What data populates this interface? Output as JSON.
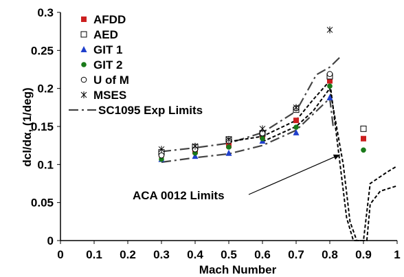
{
  "chart_data": {
    "type": "scatter",
    "xlabel": "Mach Number",
    "ylabel": "dcl/dα, (1/deg)",
    "xlim": [
      0,
      1
    ],
    "ylim": [
      0,
      0.3
    ],
    "x_ticks": [
      "0",
      "0.1",
      "0.2",
      "0.3",
      "0.4",
      "0.5",
      "0.6",
      "0.7",
      "0.8",
      "0.9",
      "1"
    ],
    "y_ticks": [
      "0",
      "0.05",
      "0.1",
      "0.15",
      "0.2",
      "0.25",
      "0.3"
    ],
    "grid": false,
    "legend_position": "top-left",
    "series": [
      {
        "name": "AFDD",
        "marker": "filled-square",
        "color": "#cc1f1f",
        "x": [
          0.3,
          0.4,
          0.5,
          0.6,
          0.7,
          0.8,
          0.9
        ],
        "y": [
          0.113,
          0.117,
          0.125,
          0.137,
          0.158,
          0.21,
          0.134
        ]
      },
      {
        "name": "AED",
        "marker": "open-square",
        "color": "#000000",
        "x": [
          0.3,
          0.4,
          0.5,
          0.6,
          0.7,
          0.8,
          0.9
        ],
        "y": [
          0.116,
          0.123,
          0.133,
          0.141,
          0.172,
          0.216,
          0.147
        ]
      },
      {
        "name": "GIT 1",
        "marker": "filled-triangle",
        "color": "#1f3fcc",
        "x": [
          0.3,
          0.4,
          0.5,
          0.6,
          0.7,
          0.8
        ],
        "y": [
          0.107,
          0.111,
          0.115,
          0.131,
          0.142,
          0.188
        ]
      },
      {
        "name": "GIT 2",
        "marker": "filled-circle",
        "color": "#1a7a1a",
        "x": [
          0.3,
          0.4,
          0.5,
          0.6,
          0.7,
          0.8,
          0.9
        ],
        "y": [
          0.107,
          0.115,
          0.123,
          0.134,
          0.149,
          0.203,
          0.119
        ]
      },
      {
        "name": "U of M",
        "marker": "open-circle",
        "color": "#000000",
        "x": [
          0.3,
          0.4,
          0.5,
          0.6,
          0.7,
          0.8
        ],
        "y": [
          0.112,
          0.12,
          0.131,
          0.141,
          0.174,
          0.219
        ]
      },
      {
        "name": "MSES",
        "marker": "asterisk",
        "color": "#000000",
        "x": [
          0.3,
          0.4,
          0.5,
          0.6,
          0.7,
          0.8
        ],
        "y": [
          0.12,
          0.124,
          0.133,
          0.147,
          0.175,
          0.277
        ]
      },
      {
        "name": "SC1095 Exp Limits",
        "line": "dash-dot",
        "color": "#444444",
        "segments": [
          {
            "x": [
              0.3,
              0.4,
              0.5,
              0.6,
              0.7,
              0.76,
              0.8,
              0.83
            ],
            "y": [
              0.117,
              0.122,
              0.128,
              0.142,
              0.17,
              0.218,
              0.228,
              0.241
            ]
          },
          {
            "x": [
              0.3,
              0.4,
              0.5,
              0.6,
              0.7,
              0.8,
              0.81
            ],
            "y": [
              0.103,
              0.109,
              0.114,
              0.125,
              0.145,
              0.187,
              0.15
            ]
          }
        ]
      },
      {
        "name": "ACA 0012 Limits",
        "line": "dashed",
        "color": "#000000",
        "segments": [
          {
            "x": [
              0.5,
              0.6,
              0.7,
              0.75,
              0.8,
              0.85,
              0.87,
              0.88,
              0.9,
              0.92,
              0.97,
              1.0
            ],
            "y": [
              0.13,
              0.137,
              0.158,
              0.185,
              0.21,
              0.03,
              0.0,
              0.0,
              0.0,
              0.075,
              0.09,
              0.098
            ]
          },
          {
            "x": [
              0.6,
              0.7,
              0.75,
              0.8,
              0.84,
              0.86,
              0.88,
              0.9,
              0.91,
              0.92,
              0.95,
              1.0
            ],
            "y": [
              0.13,
              0.15,
              0.17,
              0.2,
              0.1,
              0.025,
              0.0,
              0.0,
              0.0,
              0.048,
              0.065,
              0.072
            ]
          }
        ]
      }
    ],
    "annotations": [
      {
        "text": "ACA 0012 Limits",
        "arrow_to": [
          0.83,
          0.113
        ]
      }
    ]
  }
}
